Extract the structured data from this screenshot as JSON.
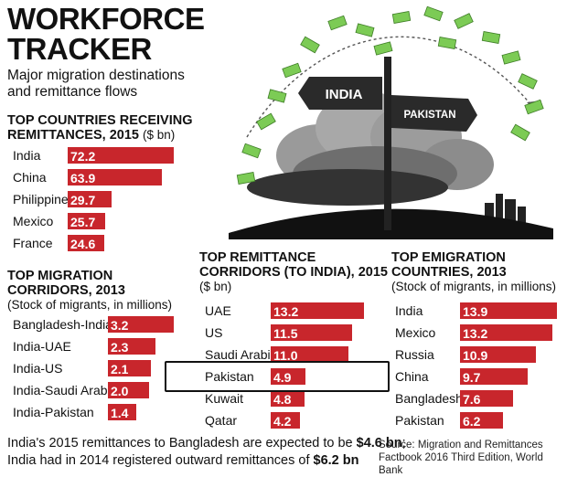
{
  "header": {
    "title_line1": "WORKFORCE",
    "title_line2": "TRACKER",
    "subtitle_line1": "Major migration destinations",
    "subtitle_line2": "and remittance flows"
  },
  "illustration": {
    "sign_left": "INDIA",
    "sign_right": "PAKISTAN"
  },
  "colors": {
    "bar": "#c8262c",
    "bar_value_text": "#ffffff",
    "money": "#6cc04a"
  },
  "charts": {
    "receiving": {
      "title_line1": "TOP COUNTRIES RECEIVING",
      "title_line2": "REMITTANCES, 2015",
      "unit": "($ bn)"
    },
    "corridors": {
      "title_line1": "TOP MIGRATION",
      "title_line2": "CORRIDORS, 2013",
      "unit": "(Stock of migrants, in millions)"
    },
    "india_corridors": {
      "title_line1": "TOP REMITTANCE",
      "title_line2": "CORRIDORS (TO INDIA), 2015",
      "unit": "($ bn)"
    },
    "emigration": {
      "title_line1": "TOP EMIGRATION",
      "title_line2": "COUNTRIES, 2013",
      "unit": "(Stock of migrants, in millions)"
    }
  },
  "chart_data": [
    {
      "type": "bar",
      "title": "TOP COUNTRIES RECEIVING REMITTANCES, 2015",
      "unit": "($ bn)",
      "categories": [
        "India",
        "China",
        "Philippines",
        "Mexico",
        "France"
      ],
      "values": [
        72.2,
        63.9,
        29.7,
        25.7,
        24.6
      ]
    },
    {
      "type": "bar",
      "title": "TOP MIGRATION CORRIDORS, 2013",
      "unit": "(Stock of migrants, in millions)",
      "categories": [
        "Bangladesh-India",
        "India-UAE",
        "India-US",
        "India-Saudi Arabia",
        "India-Pakistan"
      ],
      "values": [
        3.2,
        2.3,
        2.1,
        2.0,
        1.4
      ]
    },
    {
      "type": "bar",
      "title": "TOP REMITTANCE CORRIDORS (TO INDIA), 2015",
      "unit": "($ bn)",
      "categories": [
        "UAE",
        "US",
        "Saudi Arabia",
        "Pakistan",
        "Kuwait",
        "Qatar"
      ],
      "values": [
        13.2,
        11.5,
        11.0,
        4.9,
        4.8,
        4.2
      ],
      "highlight": "Pakistan"
    },
    {
      "type": "bar",
      "title": "TOP EMIGRATION COUNTRIES, 2013",
      "unit": "(Stock of migrants, in millions)",
      "categories": [
        "India",
        "Mexico",
        "Russia",
        "China",
        "Bangladesh",
        "Pakistan"
      ],
      "values": [
        13.9,
        13.2,
        10.9,
        9.7,
        7.6,
        6.2
      ]
    }
  ],
  "footer": {
    "line1_pre": "India's 2015 remittances to Bangladesh are expected to be ",
    "line1_bold": "$4.6 bn",
    "line1_post": ";",
    "line2_pre": "India had in 2014 registered outward remittances of ",
    "line2_bold": "$6.2 bn"
  },
  "source": {
    "line1": "Source: Migration and Remittances",
    "line2": "Factbook 2016 Third Edition, World Bank"
  }
}
